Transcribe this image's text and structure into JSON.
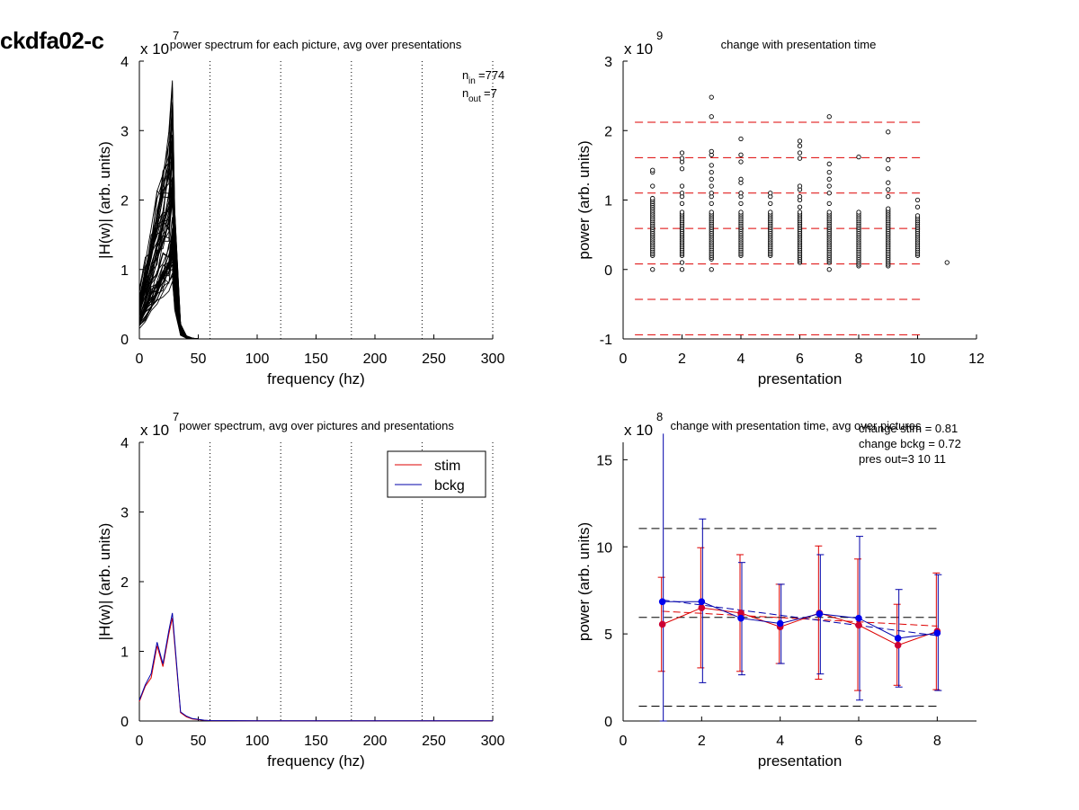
{
  "figure_title": "ckdfa02-c",
  "chart_data": [
    {
      "id": "tl",
      "type": "line",
      "title": "power spectrum for each picture, avg over presentations",
      "xlabel": "frequency (hz)",
      "ylabel": "|H(w)| (arb. units)",
      "exponent_base": "x 10",
      "exponent_power": "7",
      "xlim": [
        0,
        300
      ],
      "ylim": [
        0,
        4
      ],
      "xticks": [
        0,
        50,
        100,
        150,
        200,
        250,
        300
      ],
      "yticks": [
        0,
        1,
        2,
        3,
        4
      ],
      "xtick_labels": [
        "0",
        "50",
        "100",
        "150",
        "200",
        "250",
        "300"
      ],
      "ytick_labels": [
        "0",
        "1",
        "2",
        "3",
        "4"
      ],
      "vlines": [
        60,
        120,
        180,
        240,
        300
      ],
      "n_in_label": "n",
      "n_in_sub": "in",
      "n_in_value": "=774",
      "n_out_label": "n",
      "n_out_sub": "out",
      "n_out_value": "=7",
      "x_base": [
        0,
        5,
        10,
        15,
        20,
        25,
        28,
        30,
        35,
        40,
        45,
        50,
        55,
        60,
        300
      ],
      "y_base": [
        0.3,
        0.5,
        0.7,
        0.9,
        1.1,
        1.3,
        1.6,
        0.8,
        0.1,
        0.02,
        0.005,
        0,
        0,
        0,
        0
      ],
      "n_curves": 774,
      "line_color": "#000000"
    },
    {
      "id": "tr",
      "type": "scatter",
      "title": "change with presentation time",
      "xlabel": "presentation",
      "ylabel": "power (arb. units)",
      "exponent_base": "x 10",
      "exponent_power": "9",
      "xlim": [
        0,
        12
      ],
      "ylim": [
        -1,
        3
      ],
      "xticks": [
        0,
        2,
        4,
        6,
        8,
        10,
        12
      ],
      "yticks": [
        -1,
        0,
        1,
        2,
        3
      ],
      "xtick_labels": [
        "0",
        "2",
        "4",
        "6",
        "8",
        "10",
        "12"
      ],
      "ytick_labels": [
        "-1",
        "0",
        "1",
        "2",
        "3"
      ],
      "hlines": [
        2.12,
        1.61,
        1.1,
        0.59,
        0.08,
        -0.43,
        -0.94
      ],
      "hline_color": "#dd0000",
      "columns": [
        {
          "x": 1,
          "dense_min": 0.2,
          "dense_max": 1.05,
          "outliers": [
            0.0,
            1.2,
            1.4,
            1.43
          ]
        },
        {
          "x": 2,
          "dense_min": 0.2,
          "dense_max": 0.85,
          "outliers": [
            0.0,
            0.1,
            0.95,
            1.05,
            1.1,
            1.2,
            1.45,
            1.55,
            1.6,
            1.68
          ]
        },
        {
          "x": 3,
          "dense_min": 0.15,
          "dense_max": 0.85,
          "outliers": [
            0.0,
            0.95,
            1.05,
            1.1,
            1.2,
            1.3,
            1.4,
            1.5,
            1.65,
            1.7,
            2.2,
            2.48
          ]
        },
        {
          "x": 4,
          "dense_min": 0.2,
          "dense_max": 0.85,
          "outliers": [
            0.95,
            1.05,
            1.1,
            1.25,
            1.3,
            1.55,
            1.65,
            1.88
          ]
        },
        {
          "x": 5,
          "dense_min": 0.2,
          "dense_max": 0.85,
          "outliers": [
            0.95,
            1.05,
            1.1
          ]
        },
        {
          "x": 6,
          "dense_min": 0.1,
          "dense_max": 0.85,
          "outliers": [
            0.9,
            1.0,
            1.05,
            1.15,
            1.2,
            1.6,
            1.68,
            1.78,
            1.85
          ]
        },
        {
          "x": 7,
          "dense_min": 0.1,
          "dense_max": 0.85,
          "outliers": [
            0.0,
            0.95,
            1.1,
            1.2,
            1.3,
            1.4,
            1.52,
            2.2
          ]
        },
        {
          "x": 8,
          "dense_min": 0.05,
          "dense_max": 0.85,
          "outliers": [
            1.62
          ]
        },
        {
          "x": 9,
          "dense_min": 0.05,
          "dense_max": 0.9,
          "outliers": [
            1.05,
            1.15,
            1.25,
            1.45,
            1.58,
            1.98
          ]
        },
        {
          "x": 10,
          "dense_min": 0.2,
          "dense_max": 0.8,
          "outliers": [
            0.9,
            1.0
          ]
        },
        {
          "x": 11,
          "dense_min": 0.1,
          "dense_max": 0.1,
          "outliers": []
        }
      ]
    },
    {
      "id": "bl",
      "type": "line",
      "title": "power spectrum, avg over pictures and presentations",
      "xlabel": "frequency (hz)",
      "ylabel": "|H(w)| (arb. units)",
      "exponent_base": "x 10",
      "exponent_power": "7",
      "xlim": [
        0,
        300
      ],
      "ylim": [
        0,
        4
      ],
      "xticks": [
        0,
        50,
        100,
        150,
        200,
        250,
        300
      ],
      "yticks": [
        0,
        1,
        2,
        3,
        4
      ],
      "xtick_labels": [
        "0",
        "50",
        "100",
        "150",
        "200",
        "250",
        "300"
      ],
      "ytick_labels": [
        "0",
        "1",
        "2",
        "3",
        "4"
      ],
      "vlines": [
        60,
        120,
        180,
        240,
        300
      ],
      "legend_position": "top-right",
      "series": [
        {
          "name": "stim",
          "color": "#dd0000",
          "x": [
            0,
            5,
            10,
            15,
            20,
            25,
            28,
            30,
            35,
            40,
            45,
            50,
            55,
            60,
            100,
            150,
            200,
            250,
            300
          ],
          "y": [
            0.28,
            0.5,
            0.62,
            1.08,
            0.78,
            1.25,
            1.48,
            1.1,
            0.12,
            0.06,
            0.03,
            0.02,
            0.01,
            0.005,
            0.003,
            0.002,
            0.002,
            0.002,
            0.002
          ]
        },
        {
          "name": "bckg",
          "color": "#0000aa",
          "x": [
            0,
            5,
            10,
            15,
            20,
            25,
            28,
            30,
            35,
            40,
            45,
            50,
            55,
            60,
            100,
            150,
            200,
            250,
            300
          ],
          "y": [
            0.3,
            0.52,
            0.68,
            1.13,
            0.82,
            1.3,
            1.55,
            1.15,
            0.13,
            0.07,
            0.035,
            0.025,
            0.012,
            0.006,
            0.003,
            0.002,
            0.002,
            0.002,
            0.002
          ]
        }
      ]
    },
    {
      "id": "br",
      "type": "line",
      "title": "change with presentation time, avg over pictures",
      "xlabel": "presentation",
      "ylabel": "power (arb. units)",
      "exponent_base": "x 10",
      "exponent_power": "8",
      "xlim": [
        0,
        9
      ],
      "ylim": [
        0,
        16
      ],
      "xticks": [
        0,
        2,
        4,
        6,
        8
      ],
      "yticks": [
        0,
        5,
        10,
        15
      ],
      "xtick_labels": [
        "0",
        "2",
        "4",
        "6",
        "8"
      ],
      "ytick_labels": [
        "0",
        "5",
        "10",
        "15"
      ],
      "hlines": [
        11.05,
        5.95,
        0.85
      ],
      "hline_color": "#000000",
      "annotations": [
        "change stim = 0.81",
        "change bckg = 0.72",
        "pres out=3 10 11"
      ],
      "series": [
        {
          "name": "stim",
          "color": "#dd0000",
          "marker": "#cc0033",
          "x": [
            1,
            2,
            3,
            4,
            5,
            6,
            7,
            8
          ],
          "y": [
            5.55,
            6.5,
            6.2,
            5.4,
            6.2,
            5.5,
            4.35,
            5.15
          ],
          "err_low": [
            2.85,
            3.05,
            2.85,
            3.3,
            2.4,
            1.75,
            2.05,
            1.8
          ],
          "err_high": [
            8.25,
            9.95,
            9.55,
            7.85,
            10.05,
            9.3,
            6.7,
            8.5
          ],
          "trend": [
            6.3,
            5.45
          ]
        },
        {
          "name": "bckg",
          "color": "#0000aa",
          "marker": "#0000ee",
          "x": [
            1,
            2,
            3,
            4,
            5,
            6,
            7,
            8
          ],
          "y": [
            6.85,
            6.85,
            5.9,
            5.6,
            6.15,
            5.9,
            4.75,
            5.05
          ],
          "err_low": [
            0,
            2.2,
            2.65,
            3.3,
            2.7,
            1.2,
            1.95,
            1.75
          ],
          "err_high": [
            16.5,
            11.6,
            9.1,
            7.85,
            9.55,
            10.6,
            7.55,
            8.4
          ],
          "trend": [
            6.95,
            4.9
          ]
        }
      ]
    }
  ]
}
